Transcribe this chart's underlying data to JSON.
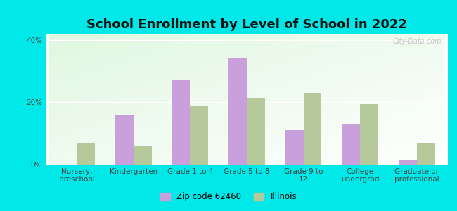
{
  "title": "School Enrollment by Level of School in 2022",
  "categories": [
    "Nursery,\npreschool",
    "Kindergarten",
    "Grade 1 to 4",
    "Grade 5 to 8",
    "Grade 9 to\n12",
    "College\nundergrad",
    "Graduate or\nprofessional"
  ],
  "zip_values": [
    0.0,
    16.0,
    27.0,
    34.0,
    11.0,
    13.0,
    1.5
  ],
  "il_values": [
    7.0,
    6.0,
    19.0,
    21.5,
    23.0,
    19.5,
    7.0
  ],
  "zip_color": "#c9a0dc",
  "il_color": "#b5c99a",
  "zip_label": "Zip code 62460",
  "il_label": "Illinois",
  "background_color": "#00e8e8",
  "ylim": [
    0,
    42
  ],
  "yticks": [
    0,
    20,
    40
  ],
  "ytick_labels": [
    "0%",
    "20%",
    "40%"
  ],
  "watermark": "City-Data.com",
  "title_fontsize": 13,
  "tick_fontsize": 7.5,
  "legend_fontsize": 8.5,
  "bar_width": 0.32
}
